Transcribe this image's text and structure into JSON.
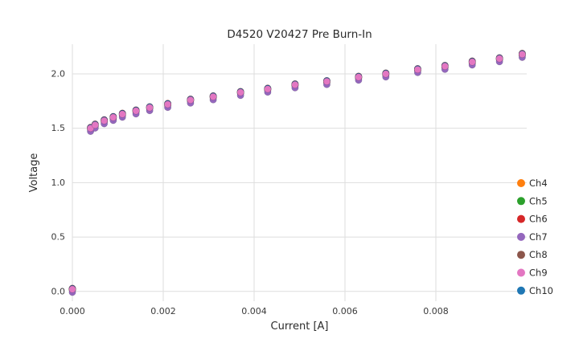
{
  "chart_data": {
    "type": "scatter",
    "title": "D4520 V20427 Pre Burn-In",
    "xlabel": "Current [A]",
    "ylabel": "Voltage",
    "xlim": [
      0,
      0.01
    ],
    "ylim": [
      -0.09,
      2.273
    ],
    "xticks": [
      0,
      0.002,
      0.004,
      0.006,
      0.008
    ],
    "xtick_labels": [
      "0.000",
      "0.002",
      "0.004",
      "0.006",
      "0.008"
    ],
    "yticks": [
      0,
      0.5,
      1.0,
      1.5,
      2.0
    ],
    "ytick_labels": [
      "0.0",
      "0.5",
      "1.0",
      "1.5",
      "2.0"
    ],
    "grid": true,
    "grid_color": "#dedede",
    "text_color": "#2b2b2b",
    "background_color": "#ffffff",
    "legend_position": "lower right",
    "marker_size": 4.2,
    "x": [
      0.0,
      0.0004,
      0.0005,
      0.0007,
      0.0009,
      0.0011,
      0.0014,
      0.0017,
      0.0021,
      0.0026,
      0.0031,
      0.0037,
      0.0043,
      0.0049,
      0.0056,
      0.0063,
      0.0069,
      0.0076,
      0.0082,
      0.0088,
      0.0094,
      0.0099
    ],
    "y_base": [
      0.02,
      1.5,
      1.53,
      1.57,
      1.6,
      1.63,
      1.66,
      1.69,
      1.72,
      1.76,
      1.79,
      1.83,
      1.86,
      1.9,
      1.93,
      1.97,
      2.0,
      2.04,
      2.07,
      2.11,
      2.14,
      2.18
    ],
    "note": "All seven channels overlap almost identically; y_offset is the small per-channel deviation from y_base, z is draw order (Ch9 pink drawn on top).",
    "series": [
      {
        "name": "Ch4",
        "color": "#ff7f0e",
        "y_offset": 0.005,
        "z": 1
      },
      {
        "name": "Ch5",
        "color": "#2ca02c",
        "y_offset": -0.004,
        "z": 2
      },
      {
        "name": "Ch6",
        "color": "#d62728",
        "y_offset": 0.008,
        "z": 3
      },
      {
        "name": "Ch7",
        "color": "#9467bd",
        "y_offset": -0.028,
        "z": 6
      },
      {
        "name": "Ch8",
        "color": "#8c564b",
        "y_offset": -0.008,
        "z": 4
      },
      {
        "name": "Ch9",
        "color": "#e377c2",
        "y_offset": 0.0,
        "z": 7
      },
      {
        "name": "Ch10",
        "color": "#1f77b4",
        "y_offset": 0.006,
        "z": 5
      }
    ]
  }
}
